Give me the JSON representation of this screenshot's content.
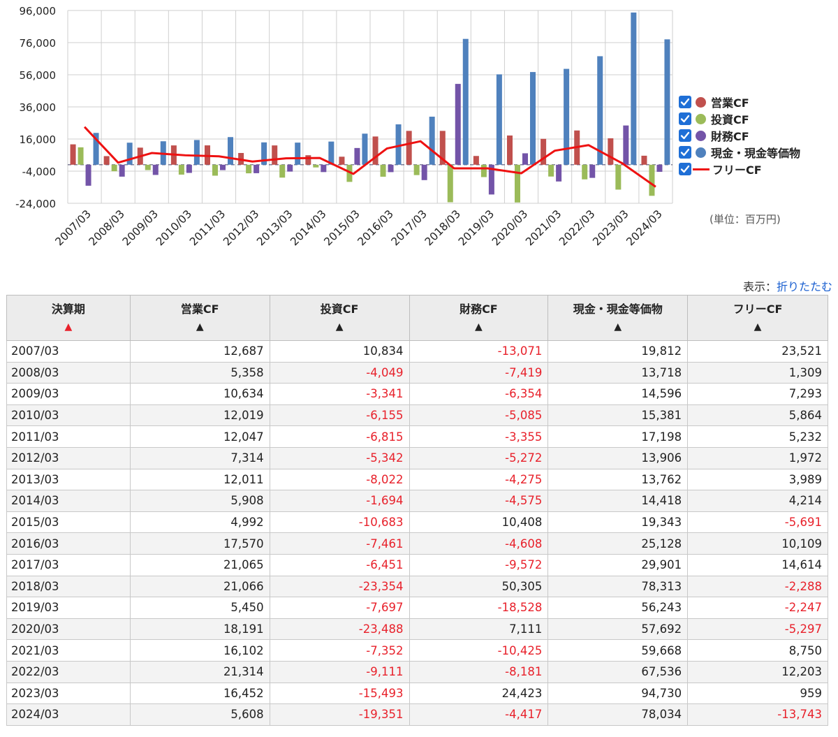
{
  "chart_data": {
    "type": "bar",
    "categories": [
      "2007/03",
      "2008/03",
      "2009/03",
      "2010/03",
      "2011/03",
      "2012/03",
      "2013/03",
      "2014/03",
      "2015/03",
      "2016/03",
      "2017/03",
      "2018/03",
      "2019/03",
      "2020/03",
      "2021/03",
      "2022/03",
      "2023/03",
      "2024/03"
    ],
    "series": [
      {
        "name": "営業CF",
        "kind": "bar",
        "color": "#c0504d",
        "values": [
          12687,
          5358,
          10634,
          12019,
          12047,
          7314,
          12011,
          5908,
          4992,
          17570,
          21065,
          21066,
          5450,
          18191,
          16102,
          21314,
          16452,
          5608
        ]
      },
      {
        "name": "投資CF",
        "kind": "bar",
        "color": "#9bbb59",
        "values": [
          10834,
          -4049,
          -3341,
          -6155,
          -6815,
          -5342,
          -8022,
          -1694,
          -10683,
          -7461,
          -6451,
          -23354,
          -7697,
          -23488,
          -7352,
          -9111,
          -15493,
          -19351
        ]
      },
      {
        "name": "財務CF",
        "kind": "bar",
        "color": "#7354a8",
        "values": [
          -13071,
          -7419,
          -6354,
          -5085,
          -3355,
          -5272,
          -4275,
          -4575,
          10408,
          -4608,
          -9572,
          50305,
          -18528,
          7111,
          -10425,
          -8181,
          24423,
          -4417
        ]
      },
      {
        "name": "現金・現金等価物",
        "kind": "bar",
        "color": "#4f81bd",
        "values": [
          19812,
          13718,
          14596,
          15381,
          17198,
          13906,
          13762,
          14418,
          19343,
          25128,
          29901,
          78313,
          56243,
          57692,
          59668,
          67536,
          94730,
          78034
        ]
      },
      {
        "name": "フリーCF",
        "kind": "line",
        "color": "#ee1111",
        "values": [
          23521,
          1309,
          7293,
          5864,
          5232,
          1972,
          3989,
          4214,
          -5691,
          10109,
          14614,
          -2288,
          -2247,
          -5297,
          8750,
          12203,
          959,
          -13743
        ]
      }
    ],
    "yticks": [
      "96,000",
      "76,000",
      "56,000",
      "36,000",
      "16,000",
      "-4,000",
      "-24,000"
    ],
    "ylim": [
      -24000,
      96000
    ],
    "grid": true,
    "legend_position": "right",
    "unit_note": "(単位：百万円)"
  },
  "toggle": {
    "prefix": "表示：",
    "link": "折りたたむ"
  },
  "table": {
    "headers": [
      "決算期",
      "営業CF",
      "投資CF",
      "財務CF",
      "現金・現金等価物",
      "フリーCF"
    ],
    "sort_marks": [
      "▲",
      "▲",
      "▲",
      "▲",
      "▲",
      "▲"
    ],
    "sort_colors": [
      "#e8212b",
      "#222222",
      "#222222",
      "#222222",
      "#222222",
      "#222222"
    ],
    "rows": [
      [
        "2007/03",
        "12,687",
        "10,834",
        "-13,071",
        "19,812",
        "23,521"
      ],
      [
        "2008/03",
        "5,358",
        "-4,049",
        "-7,419",
        "13,718",
        "1,309"
      ],
      [
        "2009/03",
        "10,634",
        "-3,341",
        "-6,354",
        "14,596",
        "7,293"
      ],
      [
        "2010/03",
        "12,019",
        "-6,155",
        "-5,085",
        "15,381",
        "5,864"
      ],
      [
        "2011/03",
        "12,047",
        "-6,815",
        "-3,355",
        "17,198",
        "5,232"
      ],
      [
        "2012/03",
        "7,314",
        "-5,342",
        "-5,272",
        "13,906",
        "1,972"
      ],
      [
        "2013/03",
        "12,011",
        "-8,022",
        "-4,275",
        "13,762",
        "3,989"
      ],
      [
        "2014/03",
        "5,908",
        "-1,694",
        "-4,575",
        "14,418",
        "4,214"
      ],
      [
        "2015/03",
        "4,992",
        "-10,683",
        "10,408",
        "19,343",
        "-5,691"
      ],
      [
        "2016/03",
        "17,570",
        "-7,461",
        "-4,608",
        "25,128",
        "10,109"
      ],
      [
        "2017/03",
        "21,065",
        "-6,451",
        "-9,572",
        "29,901",
        "14,614"
      ],
      [
        "2018/03",
        "21,066",
        "-23,354",
        "50,305",
        "78,313",
        "-2,288"
      ],
      [
        "2019/03",
        "5,450",
        "-7,697",
        "-18,528",
        "56,243",
        "-2,247"
      ],
      [
        "2020/03",
        "18,191",
        "-23,488",
        "7,111",
        "57,692",
        "-5,297"
      ],
      [
        "2021/03",
        "16,102",
        "-7,352",
        "-10,425",
        "59,668",
        "8,750"
      ],
      [
        "2022/03",
        "21,314",
        "-9,111",
        "-8,181",
        "67,536",
        "12,203"
      ],
      [
        "2023/03",
        "16,452",
        "-15,493",
        "24,423",
        "94,730",
        "959"
      ],
      [
        "2024/03",
        "5,608",
        "-19,351",
        "-4,417",
        "78,034",
        "-13,743"
      ]
    ]
  }
}
